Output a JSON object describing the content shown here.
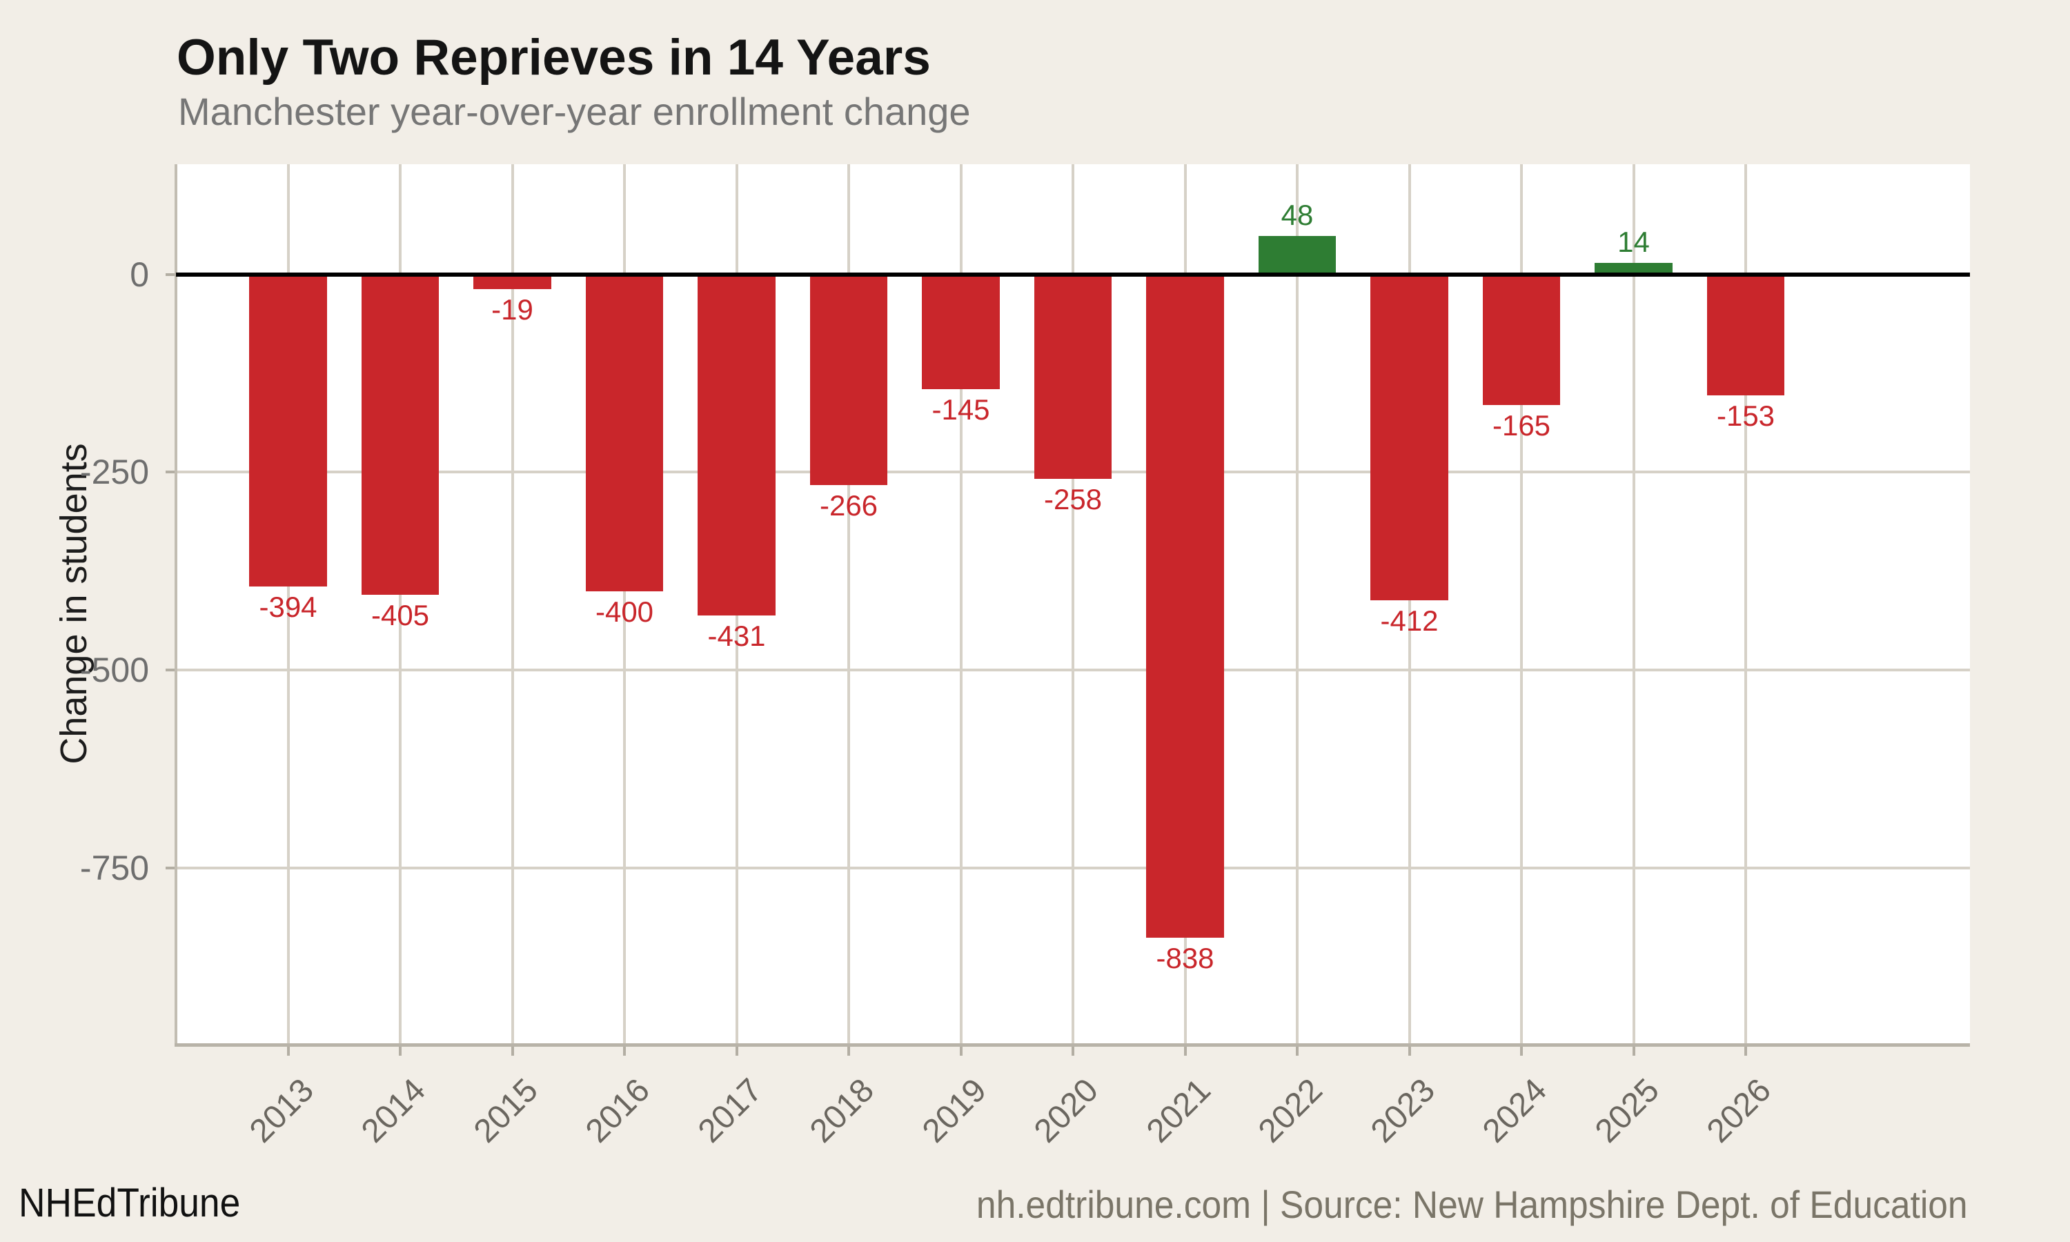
{
  "title": "Only Two Reprieves in 14 Years",
  "subtitle": "Manchester year-over-year enrollment change",
  "footer": {
    "brand": "NHEdTribune",
    "source": "nh.edtribune.com | Source: New Hampshire Dept. of Education"
  },
  "chart_data": {
    "type": "bar",
    "title": "Only Two Reprieves in 14 Years",
    "subtitle": "Manchester year-over-year enrollment change",
    "xlabel": "",
    "ylabel": "Change in students",
    "categories": [
      "2013",
      "2014",
      "2015",
      "2016",
      "2017",
      "2018",
      "2019",
      "2020",
      "2021",
      "2022",
      "2023",
      "2024",
      "2025",
      "2026"
    ],
    "values": [
      -394,
      -405,
      -19,
      -400,
      -431,
      -266,
      -145,
      -258,
      -838,
      48,
      -412,
      -165,
      14,
      -153
    ],
    "yticks": [
      0,
      -250,
      -500,
      -750
    ],
    "ylim": [
      139,
      -971
    ],
    "xlim": [
      2012,
      2028
    ],
    "bar_width_years": 0.69,
    "grid": true,
    "legend": false,
    "colors": {
      "positive": "#2e7d33",
      "negative": "#c9262b",
      "background": "#f2eee7",
      "panel": "#ffffff",
      "gridline": "#d6d1c7",
      "zero_line": "#000000",
      "axis_text": "#6e6e6e"
    }
  }
}
